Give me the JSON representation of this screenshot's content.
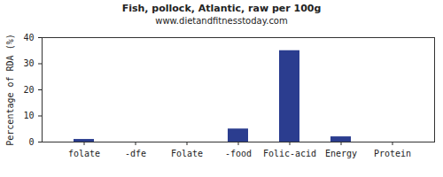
{
  "chart_data": {
    "type": "bar",
    "title": "Fish, pollock, Atlantic, raw per 100g",
    "subtitle": "www.dietandfitnesstoday.com",
    "ylabel": "Percentage of RDA (%)",
    "categories": [
      "folate",
      "-dfe",
      "Folate",
      "-food",
      "Folic-acid",
      "Energy",
      "Protein"
    ],
    "values": [
      1,
      0,
      0,
      5,
      35,
      2,
      0
    ],
    "color": "#2b3d8f",
    "ylim": [
      0,
      40
    ],
    "yticks": [
      0,
      10,
      20,
      30,
      40
    ],
    "grid": false
  }
}
